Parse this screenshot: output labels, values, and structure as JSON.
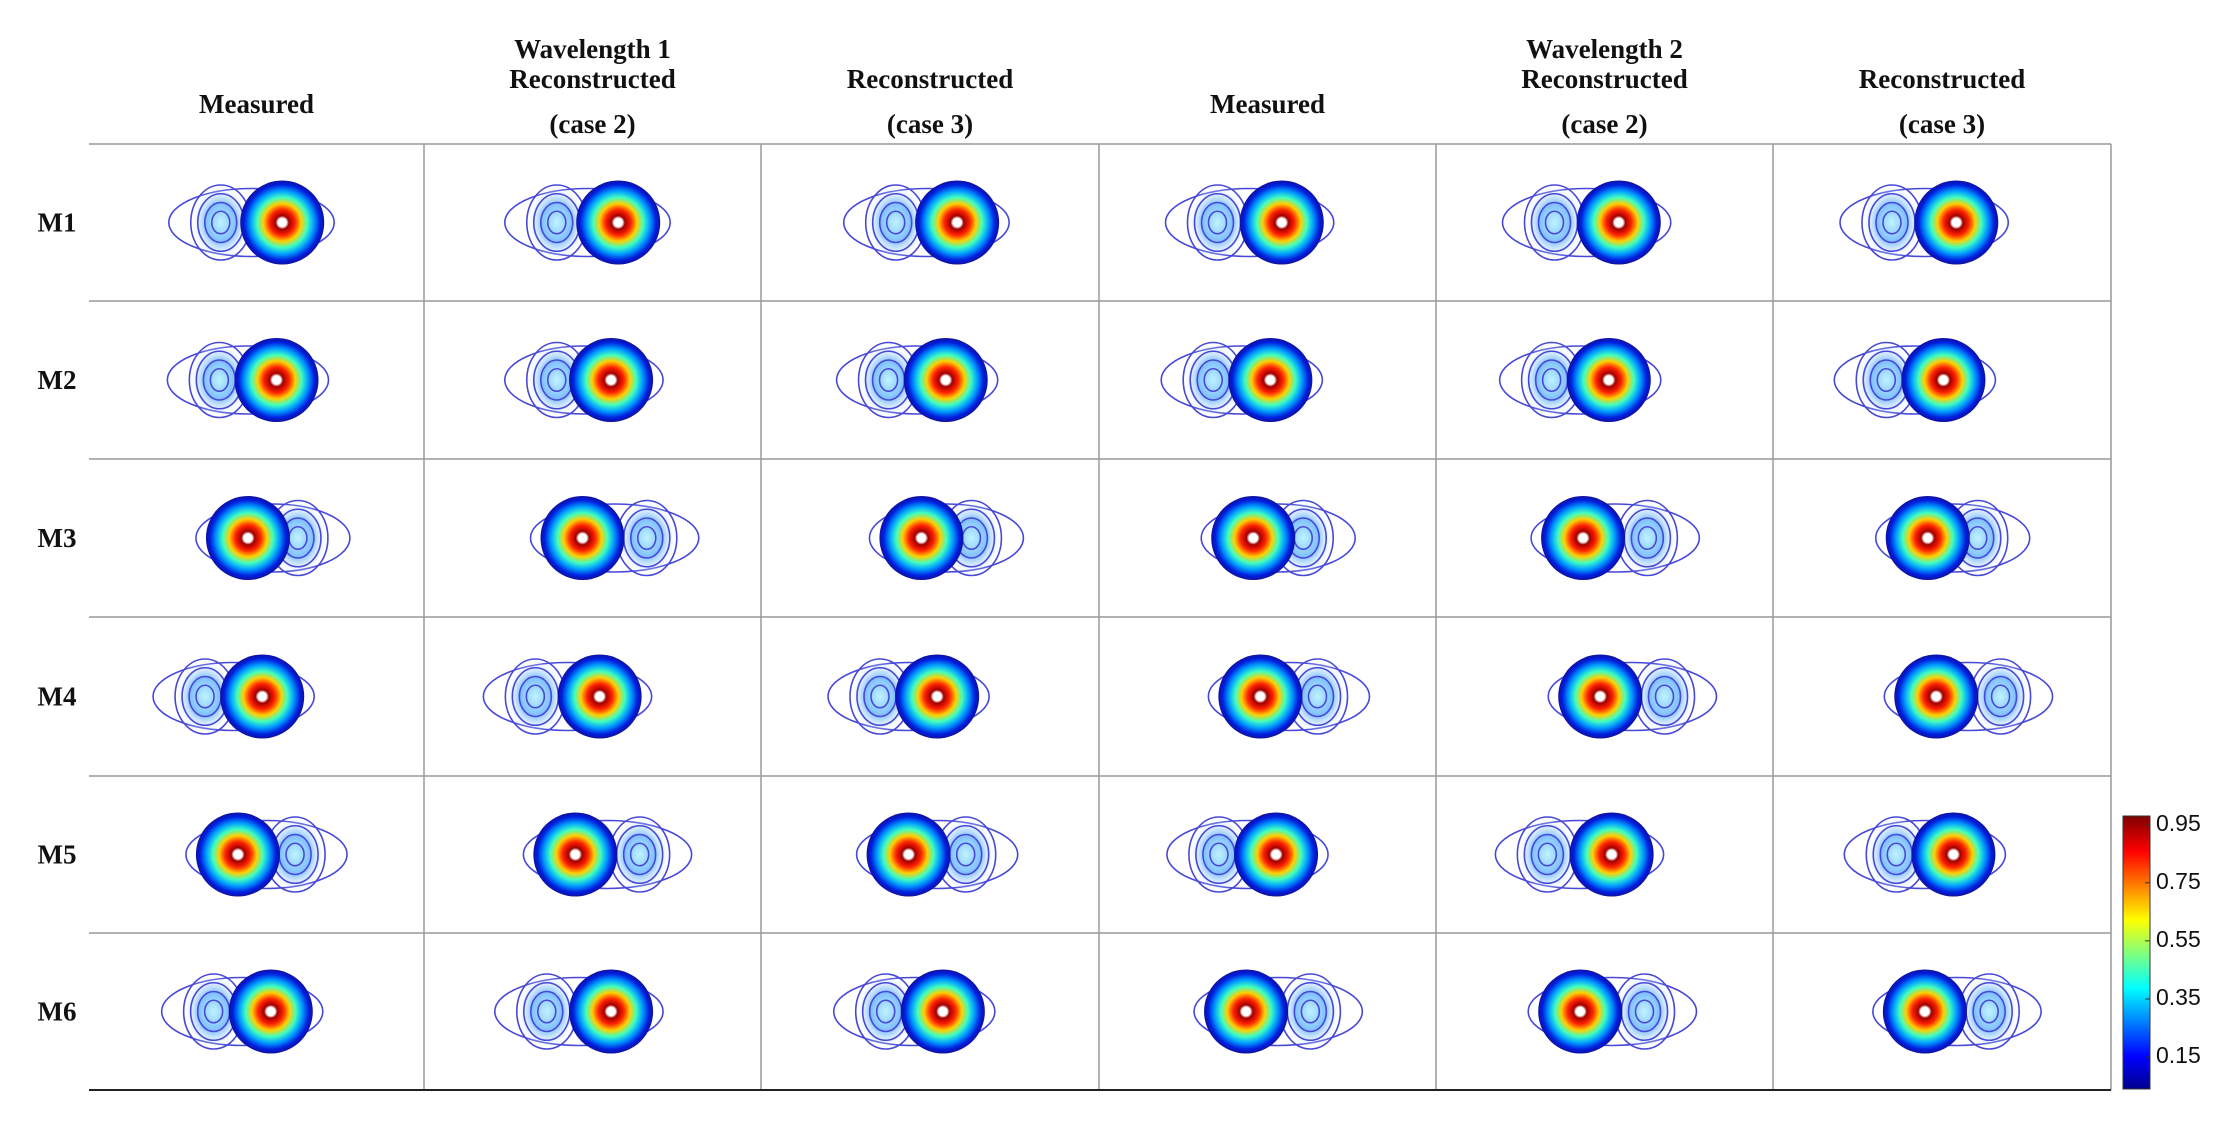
{
  "figure": {
    "group_labels": [
      "Wavelength 1",
      "Wavelength 2"
    ],
    "columns": [
      {
        "lines": [
          "Measured"
        ]
      },
      {
        "lines": [
          "Reconstructed",
          "(case 2)"
        ]
      },
      {
        "lines": [
          "Reconstructed",
          "(case 3)"
        ]
      },
      {
        "lines": [
          "Measured"
        ]
      },
      {
        "lines": [
          "Reconstructed",
          "(case 2)"
        ]
      },
      {
        "lines": [
          "Reconstructed",
          "(case 3)"
        ]
      }
    ],
    "rows": [
      "M1",
      "M2",
      "M3",
      "M4",
      "M5",
      "M6"
    ],
    "colorbar": {
      "lim": [
        0.04,
        0.98
      ],
      "ticks": [
        0.15,
        0.35,
        0.55,
        0.75,
        0.95
      ]
    }
  }
}
